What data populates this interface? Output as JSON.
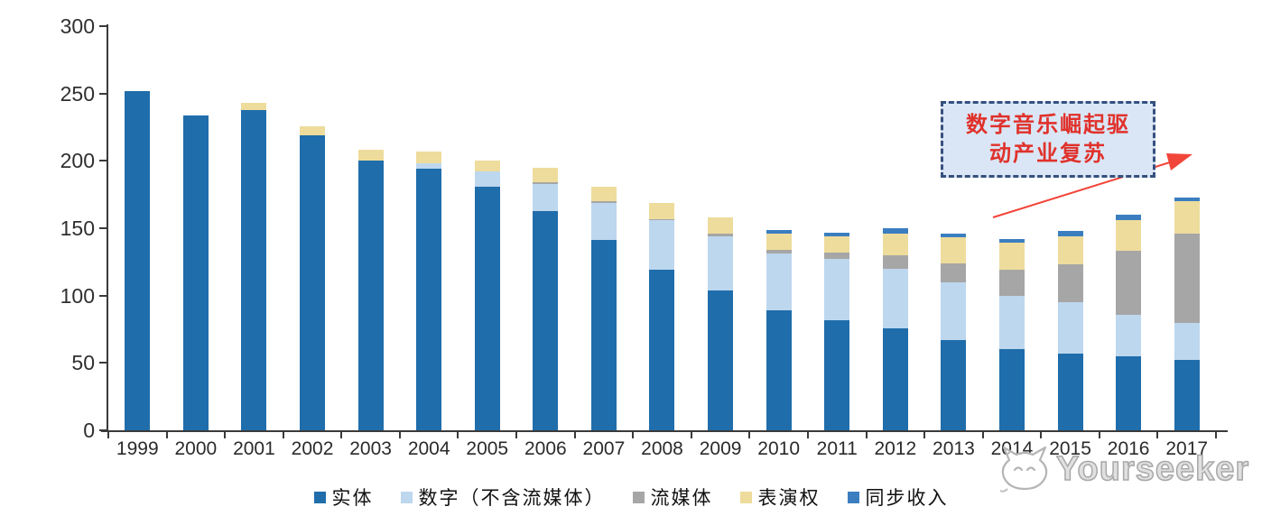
{
  "chart_data": {
    "type": "bar",
    "stacked": true,
    "unit_note": "stacked bar chart, values read from y-axis (0-300)",
    "categories": [
      "1999",
      "2000",
      "2001",
      "2002",
      "2003",
      "2004",
      "2005",
      "2006",
      "2007",
      "2008",
      "2009",
      "2010",
      "2011",
      "2012",
      "2013",
      "2014",
      "2015",
      "2016",
      "2017"
    ],
    "series": [
      {
        "name": "实体",
        "color": "#1F6DAB",
        "values": [
          252,
          234,
          238,
          219,
          200,
          194,
          181,
          163,
          141,
          119,
          104,
          89,
          82,
          76,
          67,
          60,
          57,
          55,
          52
        ]
      },
      {
        "name": "数字（不含流媒体）",
        "color": "#BDD7EE",
        "values": [
          0,
          0,
          0,
          0,
          0,
          4,
          11,
          20,
          28,
          37,
          40,
          42,
          45,
          44,
          43,
          40,
          38,
          31,
          28
        ]
      },
      {
        "name": "流媒体",
        "color": "#A6A6A6",
        "values": [
          0,
          0,
          0,
          0,
          0,
          0,
          0,
          1,
          1,
          1,
          2,
          3,
          5,
          10,
          14,
          19,
          28,
          47,
          66
        ]
      },
      {
        "name": "表演权",
        "color": "#EEDC9C",
        "values": [
          0,
          0,
          5,
          7,
          8,
          9,
          8,
          11,
          11,
          12,
          12,
          12,
          12,
          16,
          19,
          20,
          21,
          23,
          24
        ]
      },
      {
        "name": "同步收入",
        "color": "#3B7EC0",
        "values": [
          0,
          0,
          0,
          0,
          0,
          0,
          0,
          0,
          0,
          0,
          0,
          3,
          3,
          4,
          3,
          3,
          4,
          4,
          3
        ]
      }
    ],
    "totals": [
      252,
      234,
      243,
      226,
      208,
      207,
      200,
      195,
      181,
      169,
      158,
      149,
      147,
      150,
      146,
      142,
      148,
      160,
      173
    ],
    "ylim": [
      0,
      300
    ],
    "yticks": [
      "0",
      "50",
      "100",
      "150",
      "200",
      "250",
      "300"
    ],
    "grid": false,
    "legend_position": "bottom"
  },
  "annotation": {
    "line1": "数字音乐崛起驱",
    "line2": "动产业复苏",
    "text_color": "#E0312B",
    "box_fill": "#DAE6F5",
    "box_border": "#35507E",
    "arrow_color": "#F2453A"
  },
  "watermark": {
    "text": "Yourseeker",
    "logo": "cat-logo"
  },
  "colors": {
    "axis": "#3A3A3A",
    "tick_label": "#2B2B2B",
    "background": "#FFFFFF"
  }
}
